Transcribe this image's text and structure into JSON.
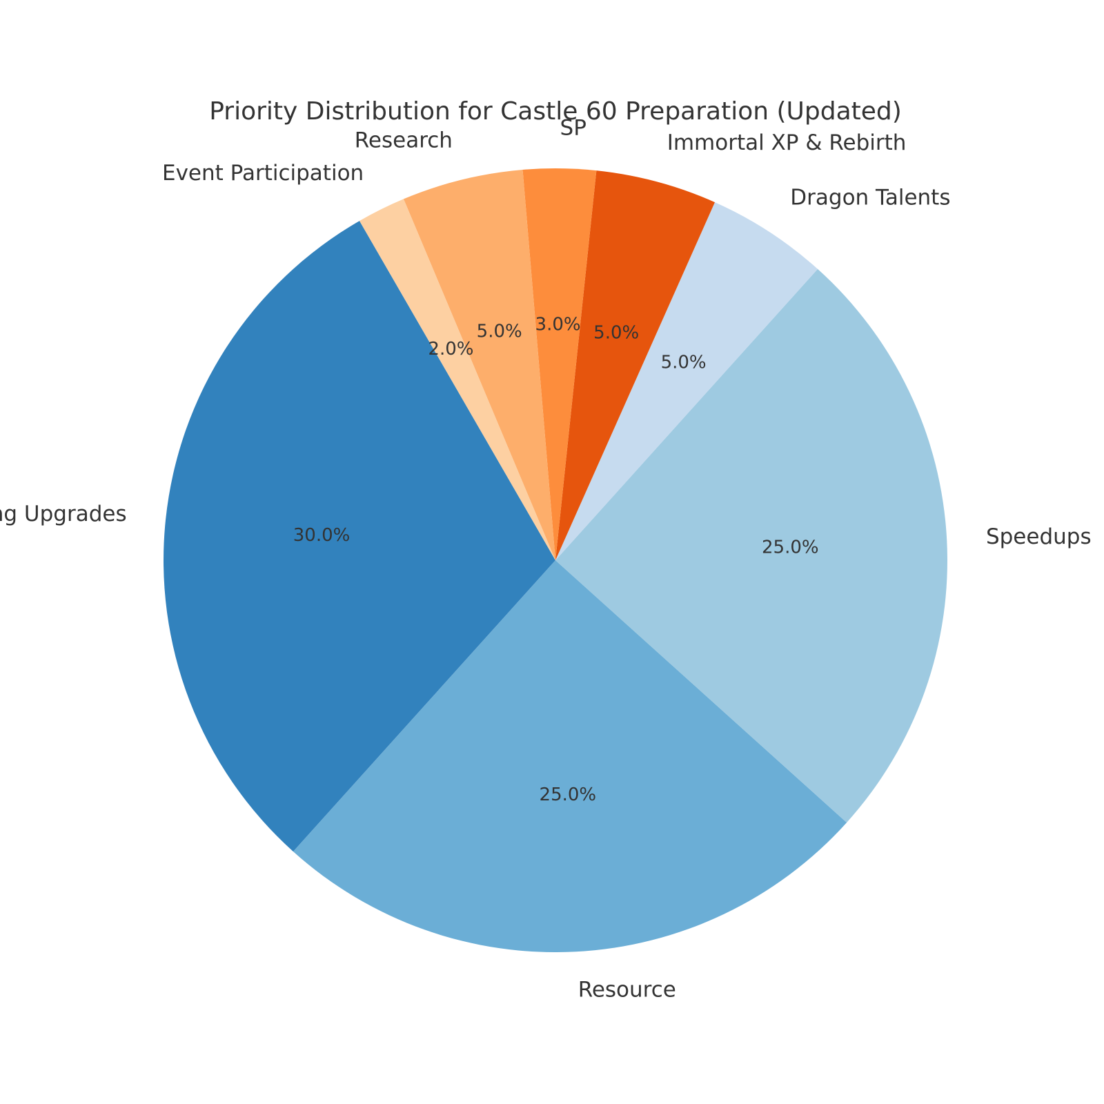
{
  "chart_data": {
    "type": "pie",
    "title": "Priority Distribution for Castle 60 Preparation (Updated)",
    "value_format": "percent, 1 decimal",
    "start_angle": "Building Upgrades starts at 120° (upper left)",
    "direction": "counter-clockwise",
    "slices": [
      {
        "label": "Building Upgrades",
        "value": 30,
        "pct_label": "30.0%",
        "color": "#3282bd"
      },
      {
        "label": "Resource",
        "value": 25,
        "pct_label": "25.0%",
        "color": "#6baed6"
      },
      {
        "label": "Speedups",
        "value": 25,
        "pct_label": "25.0%",
        "color": "#9ecae1"
      },
      {
        "label": "Dragon Talents",
        "value": 5,
        "pct_label": "5.0%",
        "color": "#c6dbef"
      },
      {
        "label": "Immortal XP & Rebirth",
        "value": 5,
        "pct_label": "5.0%",
        "color": "#e6550d"
      },
      {
        "label": "SP",
        "value": 3,
        "pct_label": "3.0%",
        "color": "#fd8d3c"
      },
      {
        "label": "Research",
        "value": 5,
        "pct_label": "5.0%",
        "color": "#fdae6b"
      },
      {
        "label": "Event Participation",
        "value": 2,
        "pct_label": "2.0%",
        "color": "#fdd0a2"
      }
    ]
  }
}
